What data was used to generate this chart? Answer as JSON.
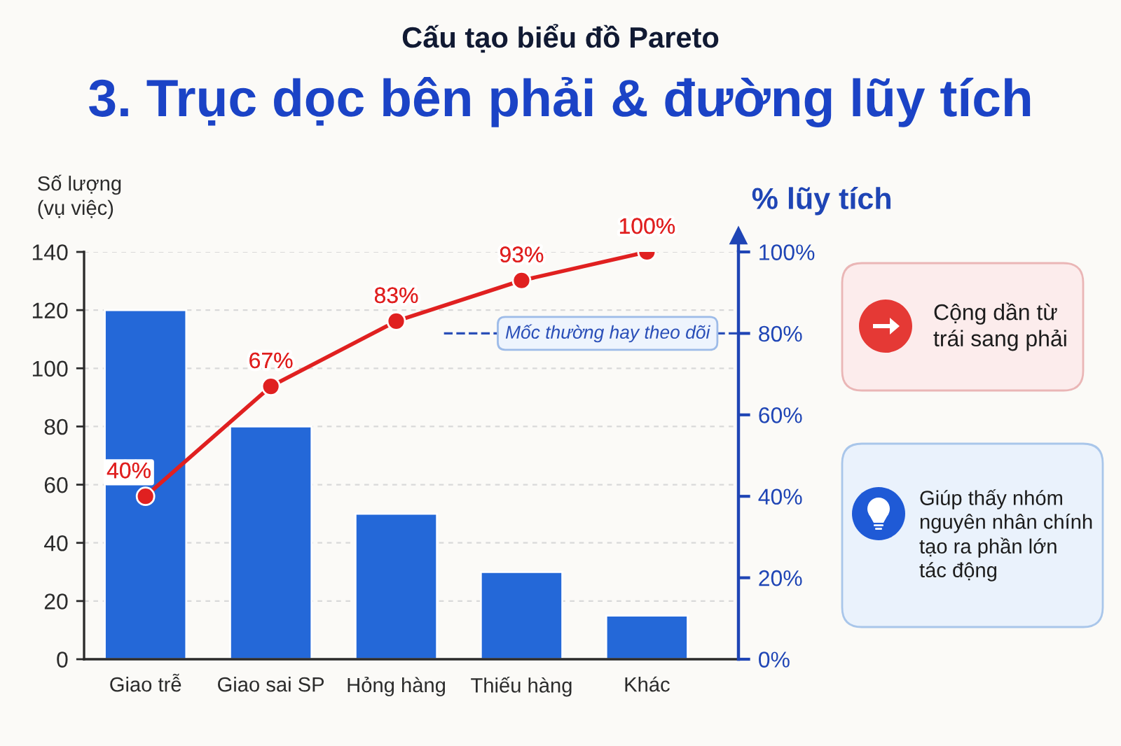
{
  "chart_data": {
    "type": "bar",
    "subtitle": "Cấu tạo biểu đồ Pareto",
    "title": "3. Trục dọc bên phải & đường lũy tích",
    "ylabel": "Số lượng\n(vụ việc)",
    "y2label": "% lũy tích",
    "categories": [
      "Giao trễ",
      "Giao sai SP",
      "Hỏng hàng",
      "Thiếu hàng",
      "Khác"
    ],
    "series": [
      {
        "color": "#2468d8",
        "values": [
          120,
          80,
          50,
          30,
          15
        ]
      },
      {
        "type": "line",
        "axis": "y2",
        "color": "#e02020",
        "marker": "circle",
        "line_style": "solid",
        "values": [
          40,
          67,
          83,
          93,
          100
        ],
        "value_labels": [
          "40%",
          "67%",
          "83%",
          "93%",
          "100%"
        ]
      }
    ],
    "ylim": [
      0,
      140
    ],
    "yticks": [
      0,
      20,
      40,
      60,
      80,
      100,
      120,
      140
    ],
    "y2lim": [
      0,
      100
    ],
    "y2ticks": [
      {
        "value": 0,
        "label": "0%"
      },
      {
        "value": 20,
        "label": "20%"
      },
      {
        "value": 40,
        "label": "40%"
      },
      {
        "value": 60,
        "label": "60%"
      },
      {
        "value": 80,
        "label": "80%"
      },
      {
        "value": 100,
        "label": "100%"
      }
    ],
    "grid": "y",
    "ref_lines": [
      {
        "axis": "y2",
        "value": 80,
        "label": "Mốc thường hay theo dõi",
        "color": "#2a4fb8",
        "line_style": "dashed"
      }
    ],
    "annotations": [
      "Cộng dần từ\ntrái sang phải",
      "Giúp thấy nhóm\nnguyên nhân chính\ntạo ra phần lớn\ntác động"
    ]
  }
}
